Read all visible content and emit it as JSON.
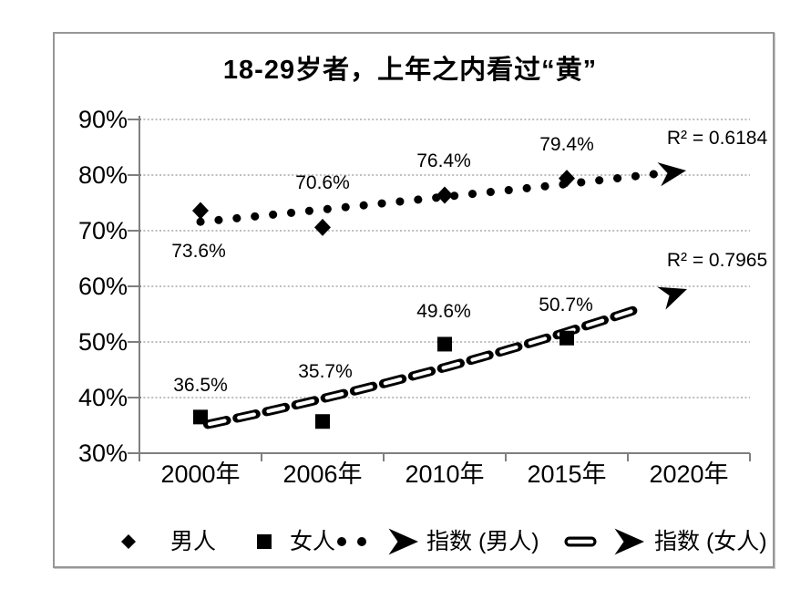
{
  "chart_data": {
    "type": "scatter",
    "title": "18-29岁者，上年之内看过“黄”",
    "categories": [
      "2000年",
      "2006年",
      "2010年",
      "2015年",
      "2020年"
    ],
    "yticks": [
      "90%",
      "80%",
      "70%",
      "60%",
      "50%",
      "40%",
      "30%"
    ],
    "ylim": [
      30,
      90
    ],
    "ytick_step": 10,
    "grid": "horizontal-dotted",
    "legend_position": "bottom",
    "series": [
      {
        "name": "男人",
        "marker": "diamond",
        "color": "#000000",
        "values": [
          73.6,
          70.6,
          76.4,
          79.4,
          null
        ],
        "point_labels": [
          "73.6%",
          "70.6%",
          "76.4%",
          "79.4%"
        ]
      },
      {
        "name": "女人",
        "marker": "square",
        "color": "#000000",
        "values": [
          36.5,
          35.7,
          49.6,
          50.7,
          null
        ],
        "point_labels": [
          "36.5%",
          "35.7%",
          "49.6%",
          "50.7%"
        ]
      }
    ],
    "trendlines": [
      {
        "name": "指数 (男人)",
        "fit": "exponential",
        "style": "dotted-arrow",
        "r2": "R² = 0.6184",
        "fit_values": [
          71.6,
          73.8,
          76.1,
          78.4,
          80.9
        ]
      },
      {
        "name": "指数 (女人)",
        "fit": "exponential",
        "style": "hollow-dash-arrow",
        "r2": "R² = 0.7965",
        "fit_values": [
          34.9,
          39.8,
          45.4,
          51.8,
          59.1
        ]
      }
    ]
  },
  "legend": {
    "items": [
      {
        "label": "男人"
      },
      {
        "label": "女人"
      },
      {
        "label": "指数 (男人)"
      },
      {
        "label": "指数 (女人)"
      }
    ]
  },
  "colors": {
    "marker": "#000000",
    "grid": "#a8a8a8",
    "axis": "#7f7f7f",
    "frame": "#979797",
    "text": "#000000"
  }
}
